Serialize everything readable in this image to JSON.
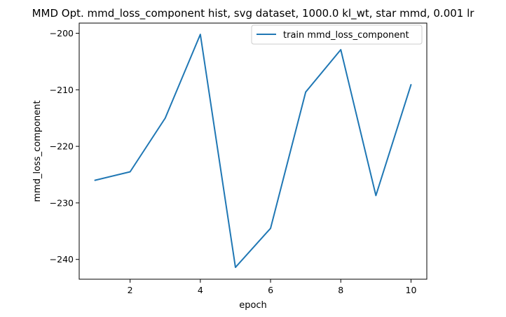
{
  "chart_data": {
    "type": "line",
    "title": "MMD Opt. mmd_loss_component hist, svg dataset, 1000.0 kl_wt, star mmd, 0.001 lr",
    "xlabel": "epoch",
    "ylabel": "mmd_loss_component",
    "xlim": [
      0.55,
      10.45
    ],
    "ylim": [
      -243.5,
      -198.2
    ],
    "xticks": [
      2,
      4,
      6,
      8,
      10
    ],
    "yticks": [
      -240,
      -230,
      -220,
      -210,
      -200
    ],
    "grid": false,
    "legend_position": "top-right",
    "series": [
      {
        "name": "train mmd_loss_component",
        "color": "#1f77b4",
        "x": [
          1,
          2,
          3,
          4,
          5,
          6,
          7,
          8,
          9,
          10
        ],
        "y": [
          -226.0,
          -224.5,
          -215.0,
          -200.2,
          -241.4,
          -234.5,
          -210.4,
          -202.9,
          -228.7,
          -209.1
        ]
      }
    ]
  }
}
